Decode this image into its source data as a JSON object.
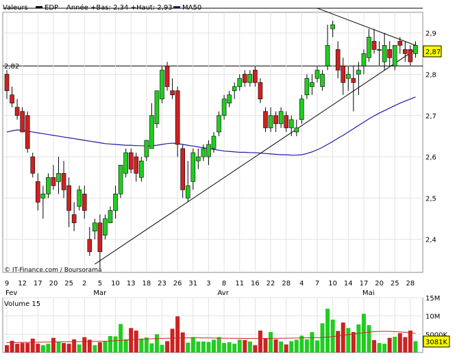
{
  "legend": {
    "label": "Valeurs",
    "ticker": "EDP",
    "stats": "Année +Bas: 2,34 +Haut: 2,93",
    "ma_label": "MA50",
    "ticker_color": "#000000",
    "ma_color": "#1a1aa0"
  },
  "watermark": "© IT-Finance.com / Boursorama",
  "price_level_label": "2,82",
  "last_price_label": "2,87",
  "volume_title": "Volume 15",
  "last_volume_label": "3081K",
  "chart_data": [
    {
      "type": "candlestick",
      "x_tick_labels": [
        "9",
        "12",
        "17",
        "20",
        "25",
        "2",
        "5",
        "10",
        "13",
        "18",
        "23",
        "26",
        "31",
        "3",
        "8",
        "11",
        "16",
        "22",
        "28",
        "4",
        "7",
        "10",
        "14",
        "17",
        "20",
        "25",
        "28"
      ],
      "month_labels": [
        "Fev",
        "Mar",
        "Avr",
        "Mai"
      ],
      "y_tick_labels": [
        "2,9",
        "2,8",
        "2,7",
        "2,6",
        "2,5",
        "2,4"
      ],
      "ylim": [
        2.32,
        2.95
      ],
      "colors": {
        "up": "#22cc22",
        "down": "#cc2222",
        "ma": "#1a1aa0"
      },
      "ohlc": [
        [
          2.8,
          2.81,
          2.74,
          2.76
        ],
        [
          2.75,
          2.77,
          2.72,
          2.73
        ],
        [
          2.72,
          2.74,
          2.69,
          2.7
        ],
        [
          2.71,
          2.72,
          2.66,
          2.66
        ],
        [
          2.7,
          2.71,
          2.61,
          2.62
        ],
        [
          2.6,
          2.61,
          2.55,
          2.56
        ],
        [
          2.54,
          2.56,
          2.47,
          2.49
        ],
        [
          2.5,
          2.53,
          2.45,
          2.51
        ],
        [
          2.51,
          2.56,
          2.5,
          2.55
        ],
        [
          2.55,
          2.58,
          2.52,
          2.53
        ],
        [
          2.54,
          2.6,
          2.51,
          2.56
        ],
        [
          2.56,
          2.59,
          2.5,
          2.52
        ],
        [
          2.53,
          2.55,
          2.43,
          2.47
        ],
        [
          2.46,
          2.49,
          2.42,
          2.44
        ],
        [
          2.48,
          2.53,
          2.47,
          2.52
        ],
        [
          2.51,
          2.53,
          2.45,
          2.47
        ],
        [
          2.4,
          2.43,
          2.36,
          2.37
        ],
        [
          2.42,
          2.45,
          2.4,
          2.44
        ],
        [
          2.44,
          2.46,
          2.33,
          2.37
        ],
        [
          2.41,
          2.46,
          2.4,
          2.45
        ],
        [
          2.44,
          2.48,
          2.44,
          2.47
        ],
        [
          2.47,
          2.53,
          2.45,
          2.51
        ],
        [
          2.51,
          2.58,
          2.5,
          2.58
        ],
        [
          2.56,
          2.62,
          2.55,
          2.61
        ],
        [
          2.61,
          2.62,
          2.56,
          2.57
        ],
        [
          2.6,
          2.61,
          2.54,
          2.56
        ],
        [
          2.55,
          2.6,
          2.54,
          2.59
        ],
        [
          2.6,
          2.64,
          2.59,
          2.64
        ],
        [
          2.62,
          2.73,
          2.62,
          2.7
        ],
        [
          2.68,
          2.76,
          2.67,
          2.76
        ],
        [
          2.74,
          2.82,
          2.73,
          2.81
        ],
        [
          2.82,
          2.83,
          2.76,
          2.77
        ],
        [
          2.76,
          2.79,
          2.74,
          2.75
        ],
        [
          2.76,
          2.77,
          2.6,
          2.63
        ],
        [
          2.62,
          2.63,
          2.5,
          2.52
        ],
        [
          2.5,
          2.59,
          2.49,
          2.53
        ],
        [
          2.54,
          2.62,
          2.52,
          2.61
        ],
        [
          2.59,
          2.62,
          2.57,
          2.6
        ],
        [
          2.6,
          2.63,
          2.59,
          2.62
        ],
        [
          2.6,
          2.64,
          2.58,
          2.63
        ],
        [
          2.62,
          2.66,
          2.61,
          2.65
        ],
        [
          2.66,
          2.71,
          2.65,
          2.7
        ],
        [
          2.7,
          2.75,
          2.69,
          2.74
        ],
        [
          2.73,
          2.76,
          2.72,
          2.75
        ],
        [
          2.76,
          2.78,
          2.74,
          2.77
        ],
        [
          2.77,
          2.8,
          2.76,
          2.79
        ],
        [
          2.8,
          2.81,
          2.77,
          2.78
        ],
        [
          2.78,
          2.81,
          2.77,
          2.8
        ],
        [
          2.81,
          2.82,
          2.77,
          2.78
        ],
        [
          2.78,
          2.79,
          2.73,
          2.74
        ],
        [
          2.71,
          2.72,
          2.66,
          2.67
        ],
        [
          2.67,
          2.72,
          2.66,
          2.7
        ],
        [
          2.7,
          2.71,
          2.66,
          2.68
        ],
        [
          2.68,
          2.72,
          2.67,
          2.71
        ],
        [
          2.7,
          2.71,
          2.66,
          2.67
        ],
        [
          2.67,
          2.7,
          2.65,
          2.69
        ],
        [
          2.66,
          2.69,
          2.65,
          2.67
        ],
        [
          2.69,
          2.75,
          2.68,
          2.74
        ],
        [
          2.75,
          2.8,
          2.74,
          2.79
        ],
        [
          2.77,
          2.8,
          2.75,
          2.78
        ],
        [
          2.79,
          2.82,
          2.78,
          2.81
        ],
        [
          2.77,
          2.81,
          2.76,
          2.8
        ],
        [
          2.82,
          2.92,
          2.81,
          2.87
        ],
        [
          2.91,
          2.93,
          2.89,
          2.92
        ],
        [
          2.86,
          2.88,
          2.79,
          2.81
        ],
        [
          2.82,
          2.84,
          2.75,
          2.78
        ],
        [
          2.79,
          2.82,
          2.76,
          2.8
        ],
        [
          2.79,
          2.82,
          2.71,
          2.78
        ],
        [
          2.8,
          2.83,
          2.75,
          2.81
        ],
        [
          2.82,
          2.86,
          2.8,
          2.85
        ],
        [
          2.84,
          2.91,
          2.83,
          2.89
        ],
        [
          2.88,
          2.91,
          2.85,
          2.86
        ],
        [
          2.86,
          2.88,
          2.82,
          2.86
        ],
        [
          2.83,
          2.9,
          2.81,
          2.87
        ],
        [
          2.86,
          2.88,
          2.82,
          2.84
        ],
        [
          2.82,
          2.87,
          2.81,
          2.87
        ],
        [
          2.88,
          2.89,
          2.85,
          2.87
        ],
        [
          2.86,
          2.88,
          2.83,
          2.85
        ],
        [
          2.86,
          2.87,
          2.82,
          2.83
        ],
        [
          2.85,
          2.88,
          2.84,
          2.87
        ]
      ],
      "ma50": [
        2.66,
        2.663,
        2.665,
        2.664,
        2.662,
        2.66,
        2.658,
        2.656,
        2.654,
        2.652,
        2.65,
        2.648,
        2.646,
        2.644,
        2.642,
        2.64,
        2.638,
        2.636,
        2.634,
        2.632,
        2.631,
        2.63,
        2.629,
        2.628,
        2.628,
        2.627,
        2.627,
        2.626,
        2.627,
        2.628,
        2.63,
        2.632,
        2.633,
        2.632,
        2.63,
        2.628,
        2.626,
        2.624,
        2.622,
        2.62,
        2.618,
        2.616,
        2.614,
        2.613,
        2.612,
        2.611,
        2.611,
        2.61,
        2.61,
        2.609,
        2.608,
        2.607,
        2.606,
        2.605,
        2.605,
        2.604,
        2.604,
        2.605,
        2.608,
        2.612,
        2.617,
        2.623,
        2.63,
        2.637,
        2.645,
        2.652,
        2.66,
        2.668,
        2.676,
        2.684,
        2.692,
        2.699,
        2.706,
        2.712,
        2.718,
        2.724,
        2.73,
        2.735,
        2.74,
        2.745
      ],
      "trendlines": [
        {
          "from": [
            17,
            2.34
          ],
          "to": [
            79,
            2.86
          ]
        },
        {
          "from": [
            60,
            2.96
          ],
          "to": [
            79,
            2.87
          ]
        }
      ],
      "hline": 2.82
    },
    {
      "type": "bar",
      "title": "Volume 15",
      "y_tick_labels": [
        "15M",
        "10M",
        "5000K"
      ],
      "ylim": [
        0,
        15000
      ],
      "volumes": [
        2000,
        3200,
        2400,
        2600,
        2600,
        3800,
        2400,
        2000,
        2400,
        4000,
        3000,
        2600,
        2400,
        3600,
        2200,
        4200,
        3500,
        2000,
        2800,
        3000,
        4500,
        4400,
        7800,
        3600,
        6700,
        6000,
        3800,
        4100,
        2500,
        5000,
        2100,
        3100,
        6500,
        9900,
        5500,
        2700,
        4200,
        3000,
        3000,
        2900,
        3500,
        4200,
        2600,
        2800,
        2400,
        3500,
        3400,
        3000,
        2000,
        6000,
        3800,
        5600,
        3600,
        3000,
        2200,
        3100,
        3500,
        4600,
        3600,
        5600,
        3300,
        8000,
        12000,
        9000,
        5900,
        8200,
        6700,
        5600,
        7700,
        10600,
        7500,
        3400,
        2600,
        2400,
        4000,
        4300,
        5300,
        4200,
        6000,
        3100
      ],
      "ma15": [
        2700,
        2720,
        2740,
        2760,
        2780,
        2800,
        2820,
        2840,
        2860,
        2880,
        2900,
        2920,
        2940,
        2960,
        2980,
        3000,
        3020,
        3040,
        3060,
        3080,
        3140,
        3220,
        3300,
        3380,
        3460,
        3540,
        3620,
        3700,
        3760,
        3800,
        3840,
        3880,
        3920,
        3960,
        3980,
        4000,
        4010,
        4000,
        3990,
        3980,
        3960,
        3940,
        3920,
        3900,
        3880,
        3860,
        3850,
        3840,
        3830,
        3830,
        3840,
        3860,
        3880,
        3900,
        3920,
        3940,
        3960,
        3980,
        4000,
        4020,
        4060,
        4120,
        4220,
        4360,
        4520,
        4700,
        4880,
        5060,
        5240,
        5420,
        5580,
        5700,
        5780,
        5800,
        5780,
        5720,
        5640,
        5520,
        5380,
        5240
      ]
    }
  ]
}
